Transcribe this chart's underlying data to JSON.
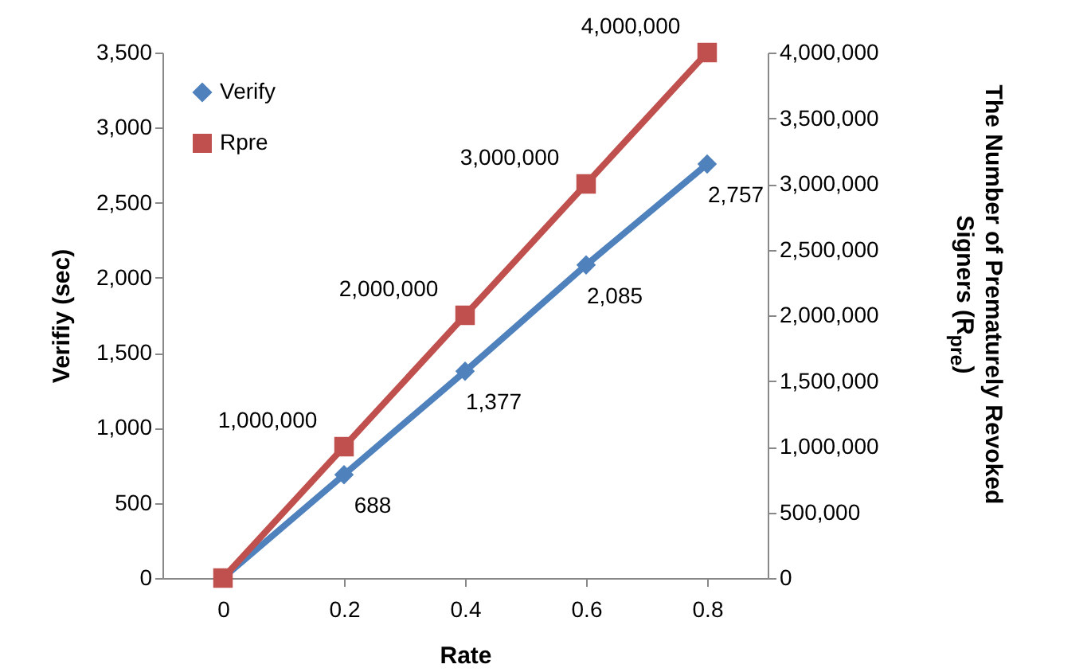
{
  "chart_data": {
    "type": "line",
    "xlabel": "Rate",
    "ylabel": "Verifiy  (sec)",
    "y2label": "The Number of Prematurely Revoked Signers (R$_{pre}$)",
    "categories": [
      "0",
      "0.2",
      "0.4",
      "0.6",
      "0.8"
    ],
    "series": [
      {
        "name": "Verify",
        "color": "#4f81bd",
        "marker": "diamond",
        "values": [
          0,
          688,
          1377,
          2085,
          2757
        ],
        "value_labels": [
          null,
          "688",
          "1,377",
          "2,085",
          "2,757"
        ]
      },
      {
        "name": "Rpre",
        "color": "#c0504d",
        "marker": "square",
        "axis": "y2",
        "values": [
          0,
          1000000,
          2000000,
          3000000,
          4000000
        ],
        "value_labels": [
          null,
          "1,000,000",
          "2,000,000",
          "3,000,000",
          "4,000,000"
        ]
      }
    ],
    "ylim": [
      0,
      3500
    ],
    "yticks": [
      0,
      500,
      {
        "value": 1000,
        "label": "1,000"
      },
      {
        "value": 1500,
        "label": "1,500"
      },
      {
        "value": 2000,
        "label": "2,000"
      },
      {
        "value": 2500,
        "label": "2,500"
      },
      {
        "value": 3000,
        "label": "3,000"
      },
      {
        "value": 3500,
        "label": "3,500"
      }
    ],
    "y2lim": [
      0,
      4000000
    ],
    "y2ticks": [
      0,
      {
        "value": 500000,
        "label": "500,000"
      },
      {
        "value": 1000000,
        "label": "1,000,000"
      },
      {
        "value": 1500000,
        "label": "1,500,000"
      },
      {
        "value": 2000000,
        "label": "2,000,000"
      },
      {
        "value": 2500000,
        "label": "2,500,000"
      },
      {
        "value": 3000000,
        "label": "3,000,000"
      },
      {
        "value": 3500000,
        "label": "3,500,000"
      },
      {
        "value": 4000000,
        "label": "4,000,000"
      }
    ],
    "grid": false,
    "legend": "top left"
  }
}
